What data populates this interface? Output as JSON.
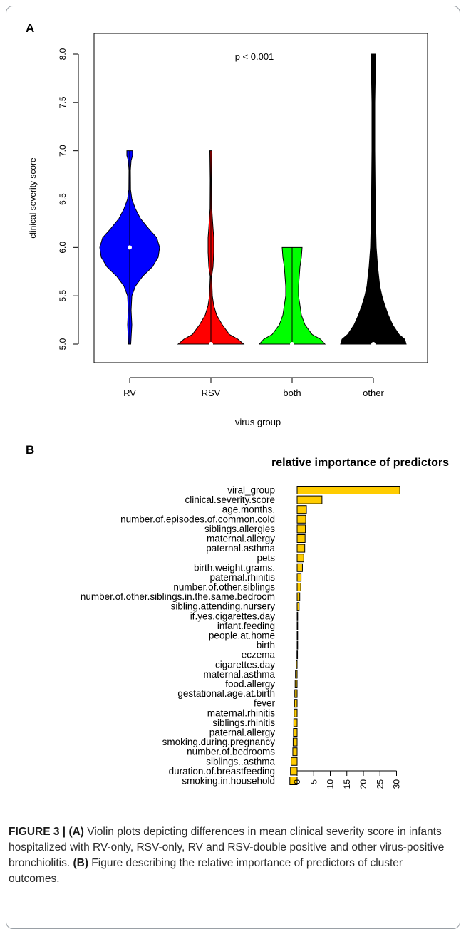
{
  "panel_a": {
    "letter": "A",
    "annotation": "p < 0.001",
    "colors": {
      "RV": "#0000ff",
      "RSV": "#ff0000",
      "both": "#00ff00",
      "other": "#000000"
    }
  },
  "panel_b": {
    "letter": "B",
    "bar_color": "#ffcc00"
  },
  "caption": {
    "label": "FIGURE 3 |",
    "part_a_label": "(A)",
    "part_a_text": " Violin plots depicting differences in mean clinical severity score in infants hospitalized with RV-only, RSV-only, RV and RSV-double positive and other virus-positive bronchiolitis. ",
    "part_b_label": "(B)",
    "part_b_text": " Figure describing the relative importance of predictors of cluster outcomes."
  },
  "chart_data": [
    {
      "type": "violin",
      "title": "",
      "xlabel": "virus group",
      "ylabel": "clinical severity score",
      "ylim": [
        5.0,
        8.0
      ],
      "yticks": [
        "5.0",
        "5.5",
        "6.0",
        "6.5",
        "7.0",
        "7.5",
        "8.0"
      ],
      "categories": [
        "RV",
        "RSV",
        "both",
        "other"
      ],
      "medians": [
        6.0,
        5.0,
        5.0,
        5.0
      ],
      "ranges": [
        [
          5.0,
          7.0
        ],
        [
          5.0,
          7.0
        ],
        [
          5.0,
          6.0
        ],
        [
          5.0,
          8.0
        ]
      ],
      "grid": false
    },
    {
      "type": "bar",
      "orientation": "horizontal",
      "title": "relative importance of predictors",
      "categories": [
        "viral_group",
        "clinical.severity.score",
        "age.months.",
        "number.of.episodes.of.common.cold",
        "siblings.allergies",
        "maternal.allergy",
        "paternal.asthma",
        "pets",
        "birth.weight.grams.",
        "paternal.rhinitis",
        "number.of.other.siblings",
        "number.of.other.siblings.in.the.same.bedroom",
        "sibling.attending.nursery",
        "if.yes.cigarettes.day",
        "infant.feeding",
        "people.at.home",
        "birth",
        "eczema",
        "cigarettes.day",
        "maternal.asthma",
        "food.allergy",
        "gestational.age.at.birth",
        "fever",
        "maternal.rhinitis",
        "siblings.rhinitis",
        "paternal.allergy",
        "smoking.during.pregnancy",
        "number.of.bedrooms",
        "siblings..asthma",
        "duration.of.breastfeeding",
        "smoking.in.household"
      ],
      "values": [
        31,
        7.5,
        2.8,
        2.6,
        2.5,
        2.4,
        2.3,
        2.0,
        1.6,
        1.2,
        1.1,
        0.8,
        0.6,
        0.1,
        0.05,
        0.05,
        0.02,
        -0.05,
        -0.3,
        -0.5,
        -0.6,
        -0.7,
        -0.8,
        -0.9,
        -1.0,
        -1.1,
        -1.2,
        -1.3,
        -1.8,
        -2.0,
        -2.2
      ],
      "xlim": [
        -2.5,
        32
      ],
      "xticks": [
        "0",
        "5",
        "10",
        "15",
        "20",
        "25",
        "30"
      ],
      "xlabel": "",
      "ylabel": ""
    }
  ]
}
